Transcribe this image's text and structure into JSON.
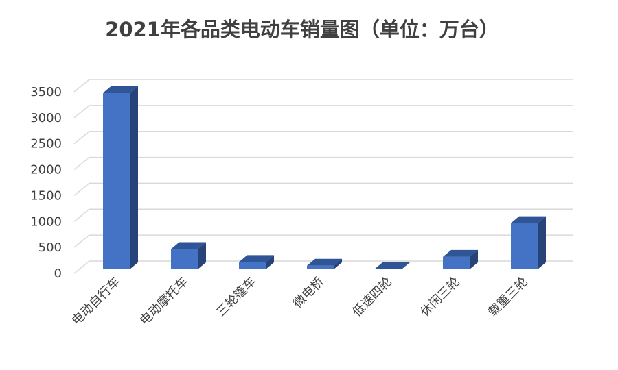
{
  "chart_data": {
    "type": "bar",
    "title": "2021年各品类电动车销量图（单位：万台）",
    "categories": [
      "电动自行车",
      "电动摩托车",
      "三轮篷车",
      "微电桥",
      "低速四轮",
      "休闲三轮",
      "载重三轮"
    ],
    "values": [
      3400,
      390,
      140,
      70,
      10,
      240,
      890
    ],
    "ylim": [
      0,
      3500
    ],
    "yticks": [
      "0",
      "500",
      "1000",
      "1500",
      "2000",
      "2500",
      "3000",
      "3500"
    ],
    "grid": true,
    "style": "3d-column",
    "colors": {
      "front": "#4472c4",
      "side": "#264478",
      "top": "#2f5597",
      "grid": "#d9d9d9"
    }
  }
}
